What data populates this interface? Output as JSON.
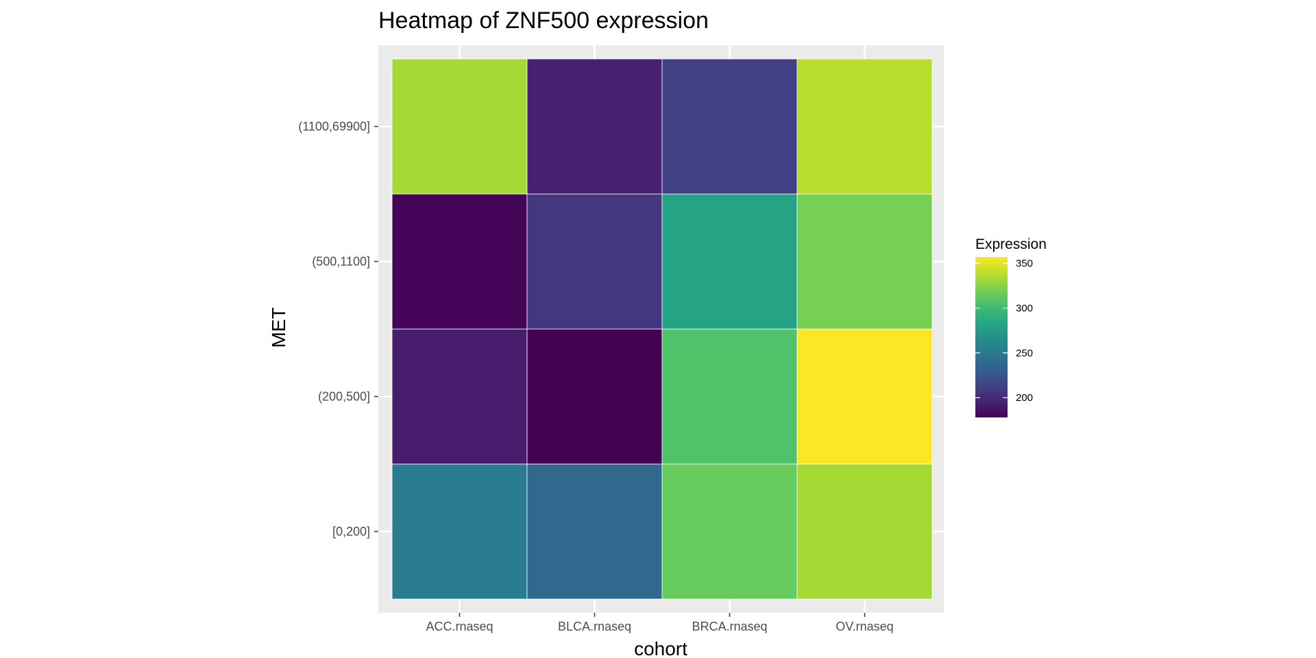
{
  "chart_data": {
    "type": "heatmap",
    "title": "Heatmap of ZNF500 expression",
    "xlabel": "cohort",
    "ylabel": "MET",
    "x_categories": [
      "ACC.rnaseq",
      "BLCA.rnaseq",
      "BRCA.rnaseq",
      "OV.rnaseq"
    ],
    "y_categories": [
      "[0,200]",
      "(200,500]",
      "(500,1100]",
      "(1100,69900]"
    ],
    "values": [
      [
        253,
        238,
        315,
        333
      ],
      [
        192,
        178,
        307,
        357
      ],
      [
        180,
        206,
        282,
        320
      ],
      [
        333,
        194,
        212,
        338
      ]
    ],
    "legend": {
      "title": "Expression",
      "min": 178,
      "max": 357,
      "ticks": [
        200,
        250,
        300,
        350
      ],
      "palette": "viridis",
      "placement": "right"
    },
    "grid": true,
    "panel_color": "#ebebeb",
    "gridline_color": "#ffffff"
  }
}
